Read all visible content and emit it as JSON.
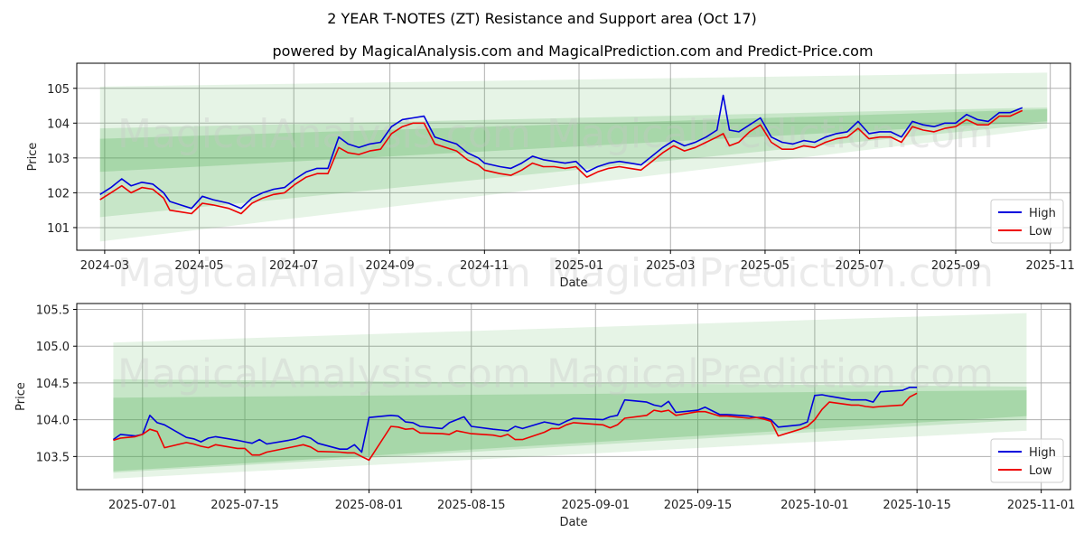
{
  "title": "2 YEAR T-NOTES (ZT) Resistance and Support area (Oct 17)",
  "subtitle": "powered by MagicalAnalysis.com and MagicalPrediction.com and Predict-Price.com",
  "watermarks": [
    "MagicalAnalysis.com",
    "MagicalPrediction.com"
  ],
  "colors": {
    "high": "#0000dd",
    "low": "#ee0000",
    "band": "#4caf50",
    "grid": "#b0b0b0"
  },
  "chart_data": [
    {
      "type": "line",
      "xlabel": "Date",
      "ylabel": "Price",
      "xlim": [
        "2024-02-12",
        "2025-11-14"
      ],
      "ylim": [
        100.35,
        105.72
      ],
      "x_ticks": [
        "2024-03",
        "2024-05",
        "2024-07",
        "2024-09",
        "2024-11",
        "2025-01",
        "2025-03",
        "2025-05",
        "2025-07",
        "2025-09",
        "2025-11"
      ],
      "y_ticks": [
        101,
        102,
        103,
        104,
        105
      ],
      "grid": true,
      "legend": "lower-right",
      "bands": [
        {
          "x": [
            "2024-02-27",
            "2025-10-30"
          ],
          "top": [
            105.05,
            105.45
          ],
          "bottom": [
            100.6,
            103.85
          ]
        },
        {
          "x": [
            "2024-02-27",
            "2025-10-30"
          ],
          "top": [
            103.85,
            104.45
          ],
          "bottom": [
            101.3,
            104.0
          ]
        },
        {
          "x": [
            "2024-02-27",
            "2025-10-30"
          ],
          "top": [
            103.55,
            104.4
          ],
          "bottom": [
            102.6,
            104.05
          ]
        }
      ],
      "series": [
        {
          "name": "High",
          "x": [
            "2024-02-27",
            "2024-03-05",
            "2024-03-12",
            "2024-03-18",
            "2024-03-25",
            "2024-04-01",
            "2024-04-08",
            "2024-04-12",
            "2024-04-19",
            "2024-04-26",
            "2024-05-03",
            "2024-05-10",
            "2024-05-20",
            "2024-05-28",
            "2024-06-04",
            "2024-06-11",
            "2024-06-18",
            "2024-06-25",
            "2024-07-02",
            "2024-07-09",
            "2024-07-16",
            "2024-07-23",
            "2024-07-30",
            "2024-08-05",
            "2024-08-12",
            "2024-08-19",
            "2024-08-26",
            "2024-09-02",
            "2024-09-09",
            "2024-09-16",
            "2024-09-23",
            "2024-09-30",
            "2024-10-07",
            "2024-10-14",
            "2024-10-21",
            "2024-10-28",
            "2024-11-01",
            "2024-11-11",
            "2024-11-18",
            "2024-11-25",
            "2024-12-02",
            "2024-12-09",
            "2024-12-16",
            "2024-12-23",
            "2024-12-30",
            "2025-01-06",
            "2025-01-13",
            "2025-01-20",
            "2025-01-27",
            "2025-02-03",
            "2025-02-10",
            "2025-02-17",
            "2025-02-24",
            "2025-03-03",
            "2025-03-10",
            "2025-03-17",
            "2025-03-24",
            "2025-03-31",
            "2025-04-04",
            "2025-04-08",
            "2025-04-14",
            "2025-04-21",
            "2025-04-28",
            "2025-05-05",
            "2025-05-12",
            "2025-05-19",
            "2025-05-26",
            "2025-06-02",
            "2025-06-09",
            "2025-06-16",
            "2025-06-23",
            "2025-06-30",
            "2025-07-07",
            "2025-07-14",
            "2025-07-21",
            "2025-07-28",
            "2025-08-04",
            "2025-08-11",
            "2025-08-18",
            "2025-08-25",
            "2025-09-01",
            "2025-09-08",
            "2025-09-15",
            "2025-09-22",
            "2025-09-29",
            "2025-10-06",
            "2025-10-14"
          ],
          "values": [
            101.95,
            102.15,
            102.4,
            102.2,
            102.3,
            102.25,
            102.0,
            101.75,
            101.65,
            101.55,
            101.9,
            101.8,
            101.7,
            101.55,
            101.85,
            102.0,
            102.1,
            102.15,
            102.4,
            102.6,
            102.7,
            102.7,
            103.6,
            103.4,
            103.3,
            103.4,
            103.45,
            103.9,
            104.1,
            104.15,
            104.2,
            103.6,
            103.5,
            103.4,
            103.15,
            103.0,
            102.85,
            102.75,
            102.7,
            102.85,
            103.05,
            102.95,
            102.9,
            102.85,
            102.9,
            102.6,
            102.75,
            102.85,
            102.9,
            102.85,
            102.8,
            103.05,
            103.3,
            103.5,
            103.35,
            103.45,
            103.6,
            103.8,
            104.8,
            103.8,
            103.75,
            103.95,
            104.15,
            103.6,
            103.45,
            103.4,
            103.5,
            103.45,
            103.6,
            103.7,
            103.75,
            104.05,
            103.7,
            103.75,
            103.75,
            103.6,
            104.05,
            103.95,
            103.9,
            104.0,
            104.0,
            104.25,
            104.1,
            104.05,
            104.3,
            104.3,
            104.44
          ]
        },
        {
          "name": "Low",
          "x": [
            "2024-02-27",
            "2024-03-05",
            "2024-03-12",
            "2024-03-18",
            "2024-03-25",
            "2024-04-01",
            "2024-04-08",
            "2024-04-12",
            "2024-04-19",
            "2024-04-26",
            "2024-05-03",
            "2024-05-10",
            "2024-05-20",
            "2024-05-28",
            "2024-06-04",
            "2024-06-11",
            "2024-06-18",
            "2024-06-25",
            "2024-07-02",
            "2024-07-09",
            "2024-07-16",
            "2024-07-23",
            "2024-07-30",
            "2024-08-05",
            "2024-08-12",
            "2024-08-19",
            "2024-08-26",
            "2024-09-02",
            "2024-09-09",
            "2024-09-16",
            "2024-09-23",
            "2024-09-30",
            "2024-10-07",
            "2024-10-14",
            "2024-10-21",
            "2024-10-28",
            "2024-11-01",
            "2024-11-11",
            "2024-11-18",
            "2024-11-25",
            "2024-12-02",
            "2024-12-09",
            "2024-12-16",
            "2024-12-23",
            "2024-12-30",
            "2025-01-06",
            "2025-01-13",
            "2025-01-20",
            "2025-01-27",
            "2025-02-03",
            "2025-02-10",
            "2025-02-17",
            "2025-02-24",
            "2025-03-03",
            "2025-03-10",
            "2025-03-17",
            "2025-03-24",
            "2025-03-31",
            "2025-04-04",
            "2025-04-08",
            "2025-04-14",
            "2025-04-21",
            "2025-04-28",
            "2025-05-05",
            "2025-05-12",
            "2025-05-19",
            "2025-05-26",
            "2025-06-02",
            "2025-06-09",
            "2025-06-16",
            "2025-06-23",
            "2025-06-30",
            "2025-07-07",
            "2025-07-14",
            "2025-07-21",
            "2025-07-28",
            "2025-08-04",
            "2025-08-11",
            "2025-08-18",
            "2025-08-25",
            "2025-09-01",
            "2025-09-08",
            "2025-09-15",
            "2025-09-22",
            "2025-09-29",
            "2025-10-06",
            "2025-10-14"
          ],
          "values": [
            101.8,
            102.0,
            102.2,
            102.0,
            102.15,
            102.1,
            101.85,
            101.5,
            101.45,
            101.4,
            101.7,
            101.65,
            101.55,
            101.4,
            101.7,
            101.85,
            101.95,
            102.0,
            102.25,
            102.45,
            102.55,
            102.55,
            103.3,
            103.15,
            103.1,
            103.2,
            103.25,
            103.7,
            103.9,
            104.0,
            104.0,
            103.4,
            103.3,
            103.2,
            102.95,
            102.8,
            102.65,
            102.55,
            102.5,
            102.65,
            102.85,
            102.75,
            102.75,
            102.7,
            102.75,
            102.45,
            102.6,
            102.7,
            102.75,
            102.7,
            102.65,
            102.9,
            103.15,
            103.35,
            103.2,
            103.3,
            103.45,
            103.6,
            103.7,
            103.35,
            103.45,
            103.75,
            103.95,
            103.45,
            103.25,
            103.25,
            103.35,
            103.3,
            103.45,
            103.55,
            103.6,
            103.85,
            103.55,
            103.6,
            103.6,
            103.45,
            103.9,
            103.8,
            103.75,
            103.85,
            103.9,
            104.1,
            103.95,
            103.95,
            104.2,
            104.2,
            104.36
          ]
        }
      ]
    },
    {
      "type": "line",
      "xlabel": "Date",
      "ylabel": "Price",
      "xlim": [
        "2025-06-22",
        "2025-11-05"
      ],
      "ylim": [
        103.05,
        105.58
      ],
      "x_ticks": [
        "2025-07-01",
        "2025-07-15",
        "2025-08-01",
        "2025-08-15",
        "2025-09-01",
        "2025-09-15",
        "2025-10-01",
        "2025-10-15",
        "2025-11-01"
      ],
      "y_ticks": [
        103.5,
        104.0,
        104.5,
        105.0,
        105.5
      ],
      "grid": true,
      "legend": "lower-right",
      "bands": [
        {
          "x": [
            "2025-06-27",
            "2025-10-30"
          ],
          "top": [
            105.05,
            105.45
          ],
          "bottom": [
            103.2,
            103.85
          ]
        },
        {
          "x": [
            "2025-06-27",
            "2025-10-30"
          ],
          "top": [
            104.55,
            104.45
          ],
          "bottom": [
            103.28,
            104.0
          ]
        },
        {
          "x": [
            "2025-06-27",
            "2025-10-30"
          ],
          "top": [
            104.3,
            104.4
          ],
          "bottom": [
            103.3,
            104.05
          ]
        }
      ],
      "series": [
        {
          "name": "High",
          "x": [
            "2025-06-27",
            "2025-06-28",
            "2025-06-30",
            "2025-07-01",
            "2025-07-02",
            "2025-07-03",
            "2025-07-04",
            "2025-07-07",
            "2025-07-08",
            "2025-07-09",
            "2025-07-10",
            "2025-07-11",
            "2025-07-14",
            "2025-07-15",
            "2025-07-16",
            "2025-07-17",
            "2025-07-18",
            "2025-07-21",
            "2025-07-22",
            "2025-07-23",
            "2025-07-24",
            "2025-07-25",
            "2025-07-28",
            "2025-07-29",
            "2025-07-30",
            "2025-07-31",
            "2025-08-01",
            "2025-08-04",
            "2025-08-05",
            "2025-08-06",
            "2025-08-07",
            "2025-08-08",
            "2025-08-11",
            "2025-08-12",
            "2025-08-13",
            "2025-08-14",
            "2025-08-15",
            "2025-08-18",
            "2025-08-19",
            "2025-08-20",
            "2025-08-21",
            "2025-08-22",
            "2025-08-25",
            "2025-08-26",
            "2025-08-27",
            "2025-08-28",
            "2025-08-29",
            "2025-09-02",
            "2025-09-03",
            "2025-09-04",
            "2025-09-05",
            "2025-09-08",
            "2025-09-09",
            "2025-09-10",
            "2025-09-11",
            "2025-09-12",
            "2025-09-15",
            "2025-09-16",
            "2025-09-17",
            "2025-09-18",
            "2025-09-19",
            "2025-09-22",
            "2025-09-23",
            "2025-09-24",
            "2025-09-25",
            "2025-09-26",
            "2025-09-29",
            "2025-09-30",
            "2025-10-01",
            "2025-10-02",
            "2025-10-03",
            "2025-10-06",
            "2025-10-07",
            "2025-10-08",
            "2025-10-09",
            "2025-10-10",
            "2025-10-13",
            "2025-10-14",
            "2025-10-15"
          ],
          "values": [
            103.73,
            103.8,
            103.78,
            103.8,
            104.06,
            103.96,
            103.93,
            103.76,
            103.74,
            103.7,
            103.75,
            103.77,
            103.72,
            103.7,
            103.68,
            103.73,
            103.67,
            103.72,
            103.74,
            103.78,
            103.75,
            103.68,
            103.6,
            103.6,
            103.66,
            103.56,
            104.03,
            104.06,
            104.05,
            103.97,
            103.96,
            103.91,
            103.88,
            103.96,
            104.0,
            104.04,
            103.91,
            103.87,
            103.86,
            103.85,
            103.91,
            103.88,
            103.97,
            103.95,
            103.93,
            103.98,
            104.02,
            104.0,
            104.04,
            104.06,
            104.27,
            104.24,
            104.2,
            104.18,
            104.25,
            104.1,
            104.13,
            104.17,
            104.12,
            104.07,
            104.07,
            104.05,
            104.03,
            104.03,
            104.0,
            103.9,
            103.93,
            103.97,
            104.33,
            104.34,
            104.32,
            104.27,
            104.27,
            104.27,
            104.24,
            104.38,
            104.4,
            104.44,
            104.44
          ]
        },
        {
          "name": "Low",
          "x": [
            "2025-06-27",
            "2025-06-28",
            "2025-06-30",
            "2025-07-01",
            "2025-07-02",
            "2025-07-03",
            "2025-07-04",
            "2025-07-07",
            "2025-07-08",
            "2025-07-09",
            "2025-07-10",
            "2025-07-11",
            "2025-07-14",
            "2025-07-15",
            "2025-07-16",
            "2025-07-17",
            "2025-07-18",
            "2025-07-21",
            "2025-07-22",
            "2025-07-23",
            "2025-07-24",
            "2025-07-25",
            "2025-07-28",
            "2025-07-29",
            "2025-07-30",
            "2025-07-31",
            "2025-08-01",
            "2025-08-04",
            "2025-08-05",
            "2025-08-06",
            "2025-08-07",
            "2025-08-08",
            "2025-08-11",
            "2025-08-12",
            "2025-08-13",
            "2025-08-14",
            "2025-08-15",
            "2025-08-18",
            "2025-08-19",
            "2025-08-20",
            "2025-08-21",
            "2025-08-22",
            "2025-08-25",
            "2025-08-26",
            "2025-08-27",
            "2025-08-28",
            "2025-08-29",
            "2025-09-02",
            "2025-09-03",
            "2025-09-04",
            "2025-09-05",
            "2025-09-08",
            "2025-09-09",
            "2025-09-10",
            "2025-09-11",
            "2025-09-12",
            "2025-09-15",
            "2025-09-16",
            "2025-09-17",
            "2025-09-18",
            "2025-09-19",
            "2025-09-22",
            "2025-09-23",
            "2025-09-24",
            "2025-09-25",
            "2025-09-26",
            "2025-09-29",
            "2025-09-30",
            "2025-10-01",
            "2025-10-02",
            "2025-10-03",
            "2025-10-06",
            "2025-10-07",
            "2025-10-08",
            "2025-10-09",
            "2025-10-10",
            "2025-10-13",
            "2025-10-14",
            "2025-10-15"
          ],
          "values": [
            103.72,
            103.75,
            103.77,
            103.8,
            103.87,
            103.84,
            103.62,
            103.69,
            103.67,
            103.64,
            103.62,
            103.66,
            103.61,
            103.61,
            103.52,
            103.52,
            103.56,
            103.62,
            103.64,
            103.66,
            103.63,
            103.57,
            103.56,
            103.55,
            103.55,
            103.5,
            103.45,
            103.91,
            103.9,
            103.87,
            103.88,
            103.82,
            103.81,
            103.8,
            103.85,
            103.83,
            103.81,
            103.79,
            103.77,
            103.8,
            103.73,
            103.73,
            103.83,
            103.88,
            103.88,
            103.93,
            103.96,
            103.93,
            103.89,
            103.93,
            104.02,
            104.06,
            104.13,
            104.11,
            104.13,
            104.06,
            104.11,
            104.11,
            104.08,
            104.05,
            104.05,
            104.02,
            104.03,
            104.01,
            103.98,
            103.78,
            103.87,
            103.91,
            104.0,
            104.14,
            104.24,
            104.2,
            104.2,
            104.18,
            104.17,
            104.18,
            104.2,
            104.31,
            104.36
          ]
        }
      ]
    }
  ]
}
